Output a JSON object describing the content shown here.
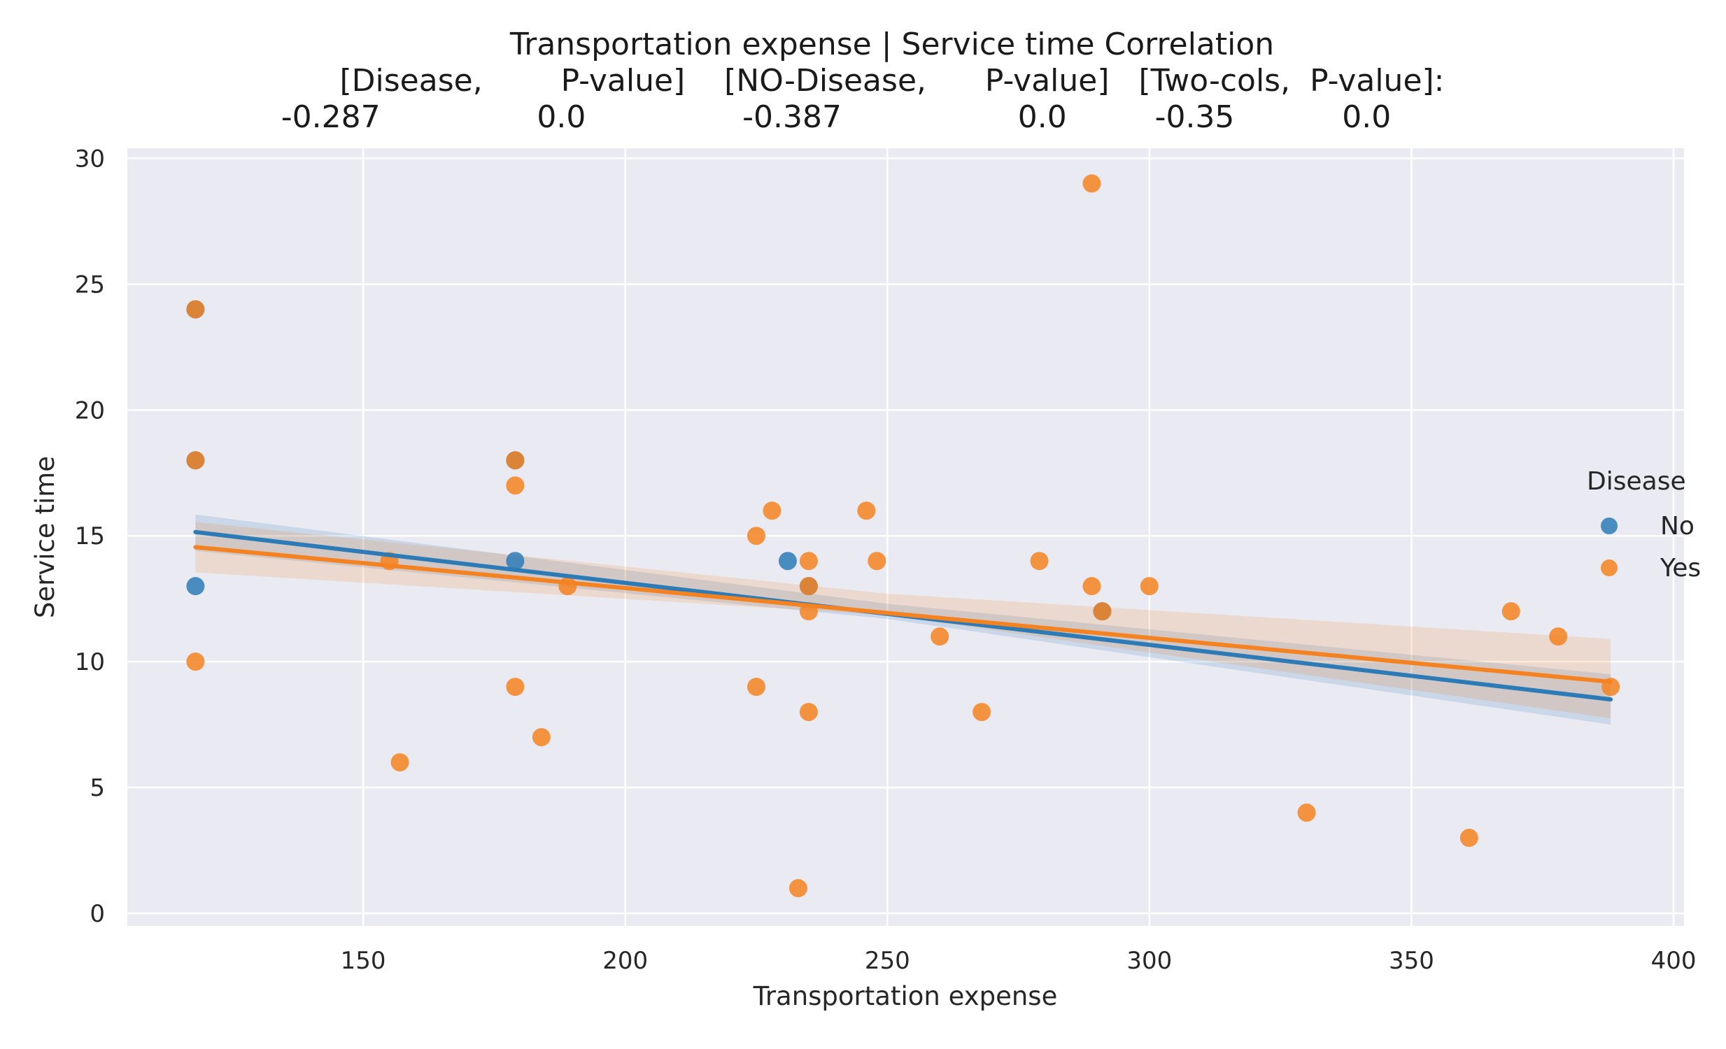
{
  "chart_data": {
    "type": "scatter",
    "title_lines": [
      "Transportation expense | Service time    Correlation",
      "[Disease,        P-value]    [NO-Disease,      P-value]   [Two-cols,  P-value]:",
      "-0.287                0.0                -0.387                  0.0         -0.35           0.0"
    ],
    "xlabel": "Transportation expense",
    "ylabel": "Service time",
    "xlim": [
      105,
      402
    ],
    "ylim": [
      -0.5,
      30.4
    ],
    "xticks": [
      150,
      200,
      250,
      300,
      350,
      400
    ],
    "yticks": [
      0,
      5,
      10,
      15,
      20,
      25,
      30
    ],
    "grid": true,
    "legend": {
      "title": "Disease",
      "placement": "right",
      "entries": [
        "No",
        "Yes"
      ]
    },
    "colors": {
      "No": "#2d7bb6",
      "Yes": "#f58220",
      "background": "#eaeaf2",
      "grid": "#ffffff"
    },
    "series": [
      {
        "name": "No",
        "points": [
          [
            118,
            24
          ],
          [
            118,
            13
          ],
          [
            179,
            14
          ],
          [
            231,
            14
          ],
          [
            235,
            13
          ],
          [
            291,
            12
          ],
          [
            118,
            18
          ],
          [
            179,
            18
          ]
        ],
        "regression": {
          "x": [
            118,
            388
          ],
          "y": [
            15.15,
            8.5
          ]
        },
        "ci_upper": [
          [
            118,
            15.85
          ],
          [
            250,
            12.3
          ],
          [
            388,
            9.5
          ]
        ],
        "ci_lower": [
          [
            118,
            14.4
          ],
          [
            250,
            11.7
          ],
          [
            388,
            7.5
          ]
        ]
      },
      {
        "name": "Yes",
        "points": [
          [
            118,
            24
          ],
          [
            118,
            18
          ],
          [
            118,
            10
          ],
          [
            155,
            14
          ],
          [
            157,
            6
          ],
          [
            179,
            18
          ],
          [
            179,
            17
          ],
          [
            179,
            9
          ],
          [
            184,
            7
          ],
          [
            189,
            13
          ],
          [
            225,
            15
          ],
          [
            225,
            9
          ],
          [
            228,
            16
          ],
          [
            233,
            1
          ],
          [
            235,
            14
          ],
          [
            235,
            13
          ],
          [
            235,
            12
          ],
          [
            235,
            8
          ],
          [
            246,
            16
          ],
          [
            248,
            14
          ],
          [
            260,
            11
          ],
          [
            268,
            8
          ],
          [
            279,
            14
          ],
          [
            289,
            29
          ],
          [
            289,
            13
          ],
          [
            291,
            12
          ],
          [
            300,
            13
          ],
          [
            330,
            4
          ],
          [
            361,
            3
          ],
          [
            369,
            12
          ],
          [
            378,
            11
          ],
          [
            388,
            9
          ]
        ],
        "regression": {
          "x": [
            118,
            388
          ],
          "y": [
            14.55,
            9.2
          ]
        },
        "ci_upper": [
          [
            118,
            15.55
          ],
          [
            250,
            12.7
          ],
          [
            388,
            10.9
          ]
        ],
        "ci_lower": [
          [
            118,
            13.55
          ],
          [
            250,
            11.85
          ],
          [
            388,
            7.75
          ]
        ]
      }
    ]
  }
}
